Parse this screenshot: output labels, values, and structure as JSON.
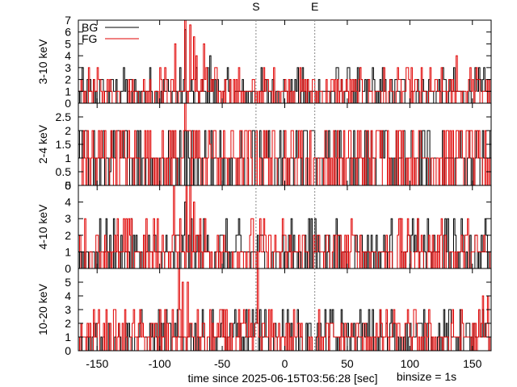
{
  "colors": {
    "bg": "#000000",
    "fg": "#e00000",
    "marker": "#888888"
  },
  "chart_data": {
    "type": "line",
    "xlim": [
      -165,
      165
    ],
    "xticks": [
      -150,
      -100,
      -50,
      0,
      50,
      100,
      150
    ],
    "xlabel": "time since 2025-06-15T03:56:28 [sec]",
    "note": "binsize = 1s",
    "markers": [
      {
        "label": "S",
        "x": -23
      },
      {
        "label": "E",
        "x": 24
      }
    ],
    "legend": {
      "entries": [
        "BG",
        "FG"
      ],
      "placement": "top-left"
    },
    "panels": [
      {
        "ylabel": "3-10 keV",
        "ylim": [
          0,
          7
        ],
        "yticks": [
          "0",
          "1",
          "2",
          "3",
          "4",
          "5",
          "6",
          "7"
        ],
        "spikes": {
          "bg": [
            [
              -80,
              6.2
            ],
            [
              42,
              3
            ],
            [
              -60,
              4
            ],
            [
              70,
              3
            ]
          ],
          "fg": [
            [
              -88,
              5
            ],
            [
              -80,
              7
            ],
            [
              -76,
              6.6
            ],
            [
              -73,
              5.6
            ],
            [
              -71,
              4
            ],
            [
              -65,
              5
            ],
            [
              -100,
              3
            ],
            [
              137,
              4
            ],
            [
              148,
              3
            ]
          ]
        }
      },
      {
        "ylabel": "2-4 keV",
        "ylim": [
          0,
          3
        ],
        "yticks": [
          "0",
          "0.5",
          "1",
          "1.5",
          "2",
          "2.5",
          ""
        ],
        "spikes": {
          "bg": [
            [
              -78,
              2
            ],
            [
              -140,
              0.5
            ]
          ],
          "fg": [
            [
              -88,
              2
            ],
            [
              -80,
              3
            ],
            [
              -76,
              2
            ],
            [
              -73,
              2
            ],
            [
              -60,
              1.5
            ],
            [
              148,
              2
            ]
          ]
        }
      },
      {
        "ylabel": "4-10 keV",
        "ylim": [
          0,
          5
        ],
        "yticks": [
          "0",
          "1",
          "2",
          "3",
          "4",
          "5"
        ],
        "spikes": {
          "bg": [
            [
              24,
              3
            ],
            [
              -80,
              4
            ]
          ],
          "fg": [
            [
              -89,
              5
            ],
            [
              -79,
              5
            ],
            [
              -76,
              5
            ],
            [
              -73,
              4
            ],
            [
              -64,
              3
            ],
            [
              125,
              3
            ]
          ]
        }
      },
      {
        "ylabel": "10-20 keV",
        "ylim": [
          0,
          6
        ],
        "yticks": [
          "0",
          "1",
          "2",
          "3",
          "4",
          "5",
          ""
        ],
        "spikes": {
          "bg": [
            [
              -20,
              3
            ],
            [
              85,
              3
            ]
          ],
          "fg": [
            [
              -85,
              6
            ],
            [
              -82,
              5
            ],
            [
              -78,
              5
            ],
            [
              -22,
              6
            ],
            [
              -100,
              3
            ],
            [
              158,
              4
            ],
            [
              162,
              4
            ]
          ]
        }
      }
    ]
  }
}
